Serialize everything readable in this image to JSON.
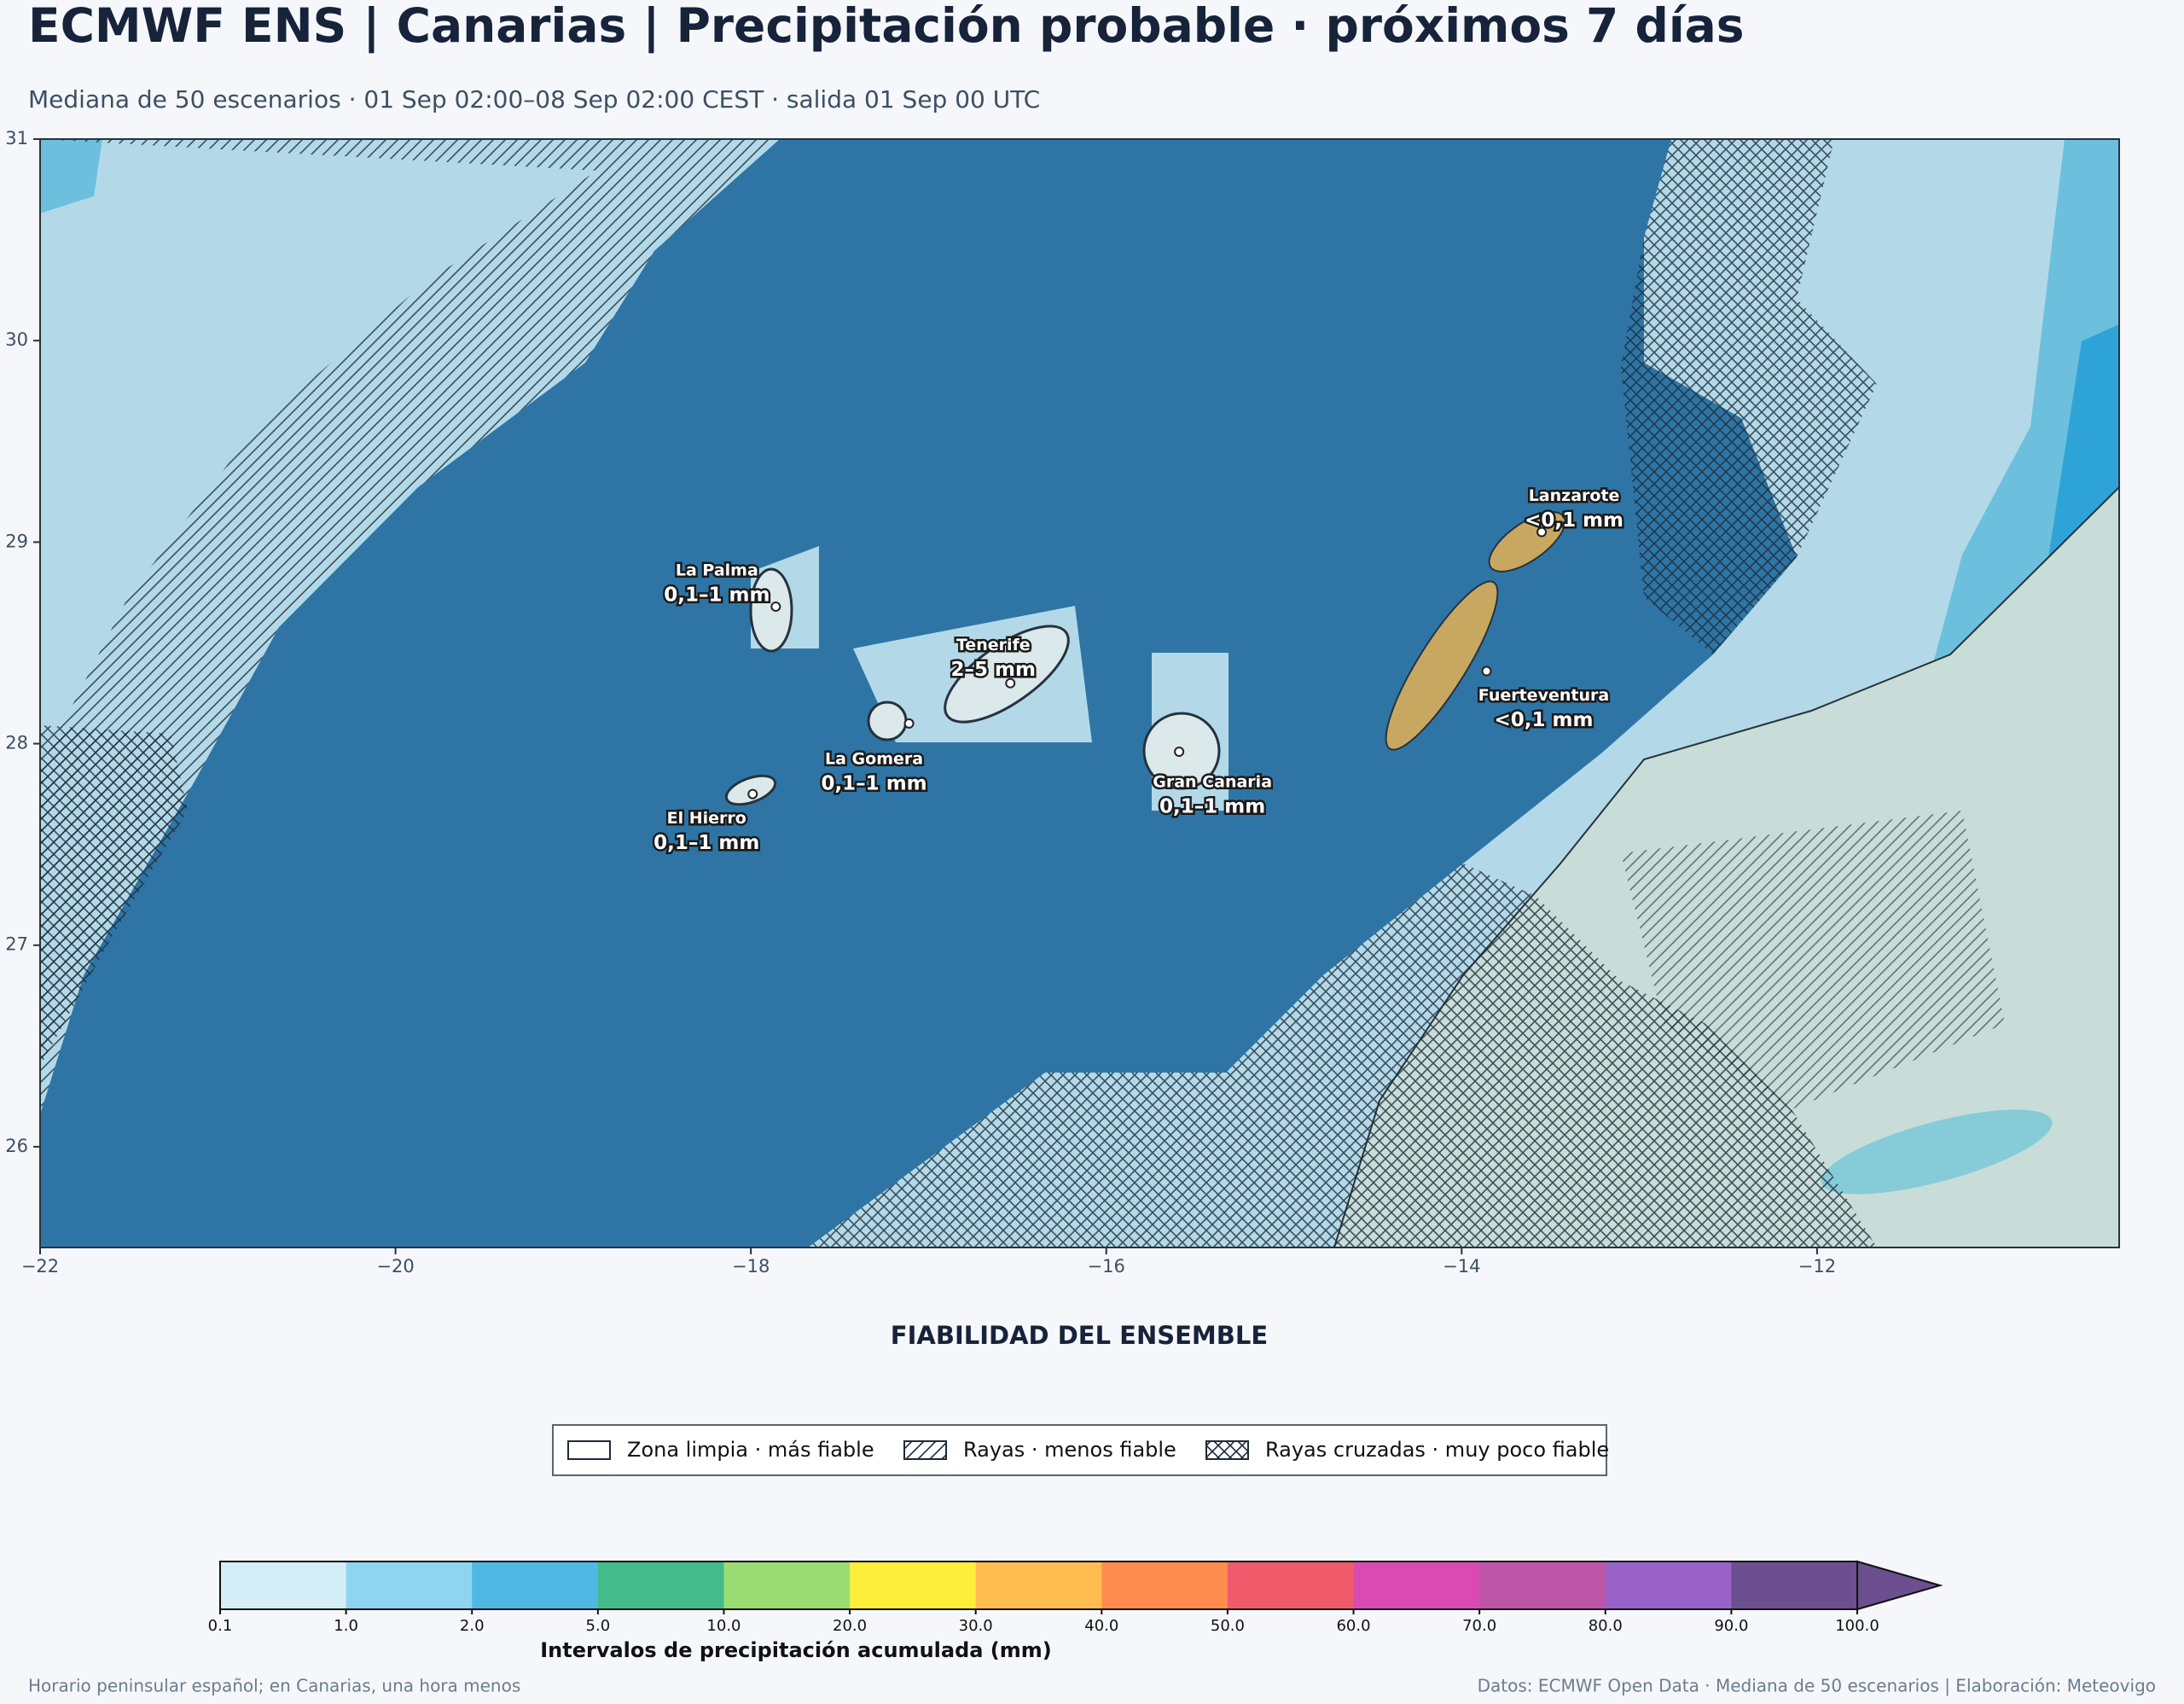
{
  "title": "ECMWF ENS | Canarias | Precipitación probable · próximos 7 días",
  "subtitle": "Mediana de 50 escenarios · 01 Sep 02:00–08 Sep 02:00 CEST · salida 01 Sep 00 UTC",
  "map": {
    "xlim": [
      -22,
      -10.3
    ],
    "ylim": [
      25.5,
      31
    ],
    "xticks": [
      {
        "value": -22,
        "label": "−22"
      },
      {
        "value": -20,
        "label": "−20"
      },
      {
        "value": -18,
        "label": "−18"
      },
      {
        "value": -16,
        "label": "−16"
      },
      {
        "value": -14,
        "label": "−14"
      },
      {
        "value": -12,
        "label": "−12"
      }
    ],
    "yticks": [
      26,
      27,
      28,
      29,
      30,
      31
    ],
    "islands": [
      {
        "name": "La Palma",
        "amount": "0,1–1 mm",
        "lon": -17.86,
        "lat": 28.68
      },
      {
        "name": "Tenerife",
        "amount": "2–5 mm",
        "lon": -16.54,
        "lat": 28.3
      },
      {
        "name": "La Gomera",
        "amount": "0,1–1 mm",
        "lon": -17.11,
        "lat": 28.1
      },
      {
        "name": "El Hierro",
        "amount": "0,1–1 mm",
        "lon": -17.99,
        "lat": 27.75
      },
      {
        "name": "Gran Canaria",
        "amount": "0,1–1 mm",
        "lon": -15.59,
        "lat": 27.96
      },
      {
        "name": "Fuerteventura",
        "amount": "<0,1 mm",
        "lon": -13.86,
        "lat": 28.36
      },
      {
        "name": "Lanzarote",
        "amount": "<0,1 mm",
        "lon": -13.55,
        "lat": 29.05
      }
    ]
  },
  "reliability": {
    "title": "FIABILIDAD DEL ENSEMBLE",
    "items": [
      {
        "label": "Zona limpia · más fiable",
        "pattern": "none"
      },
      {
        "label": "Rayas · menos fiable",
        "pattern": "diagonal"
      },
      {
        "label": "Rayas cruzadas · muy poco fiable",
        "pattern": "cross"
      }
    ]
  },
  "colorbar": {
    "bounds": [
      0.1,
      {
        "value": 1,
        "label": "1.0"
      },
      {
        "value": 2,
        "label": "2.0"
      },
      {
        "value": 5,
        "label": "5.0"
      },
      {
        "value": 10,
        "label": "10.0"
      },
      {
        "value": 20,
        "label": "20.0"
      },
      {
        "value": 30,
        "label": "30.0"
      },
      {
        "value": 40,
        "label": "40.0"
      },
      {
        "value": 50,
        "label": "50.0"
      },
      {
        "value": 60,
        "label": "60.0"
      },
      {
        "value": 70,
        "label": "70.0"
      },
      {
        "value": 80,
        "label": "80.0"
      },
      {
        "value": 90,
        "label": "90.0"
      },
      {
        "value": 100,
        "label": "100.0"
      }
    ],
    "colors": [
      "#d4eef7",
      "#8fd5f0",
      "#4fb9e3",
      "#44bb8a",
      "#9bdc72",
      "#fdee3c",
      "#ffbd4f",
      "#ff8c4f",
      "#f05b6b",
      "#d94bb2",
      "#bf55a9",
      "#9962c9",
      "#6b4f8f"
    ],
    "extend": "max",
    "label": "Intervalos de precipitación acumulada (mm)"
  },
  "footer": {
    "left": "Horario peninsular español; en Canarias, una hora menos",
    "right": "Datos: ECMWF Open Data · Mediana de 50 escenarios | Elaboración: Meteovigo"
  }
}
